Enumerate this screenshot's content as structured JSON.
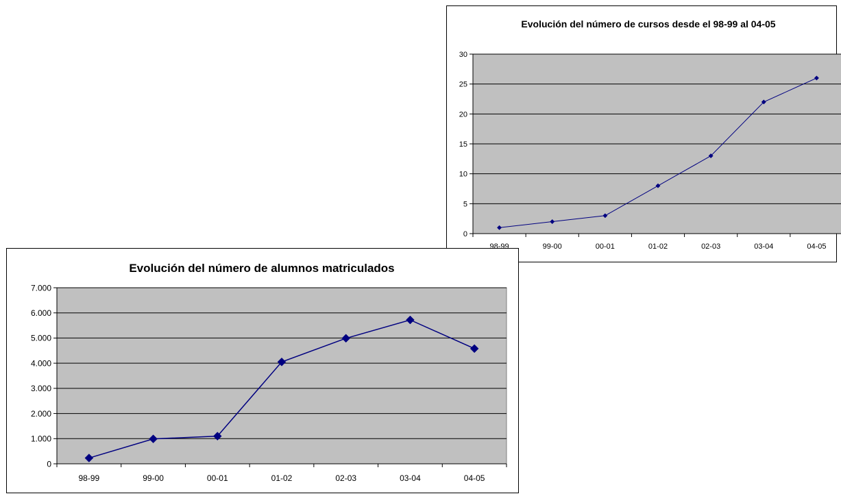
{
  "chart_data": [
    {
      "id": "cursos",
      "type": "line",
      "title": "Evolución del número de cursos desde el 98-99 al 04-05",
      "xlabel": "",
      "ylabel": "",
      "categories": [
        "98-99",
        "99-00",
        "00-01",
        "01-02",
        "02-03",
        "03-04",
        "04-05"
      ],
      "series": [
        {
          "values": [
            1,
            2,
            3,
            8,
            13,
            22,
            26
          ]
        }
      ],
      "ylim": [
        0,
        30
      ],
      "yticks": [
        0,
        5,
        10,
        15,
        20,
        25,
        30
      ],
      "ytick_labels": [
        "0",
        "5",
        "10",
        "15",
        "20",
        "25",
        "30"
      ],
      "grid": true,
      "legend": "none",
      "plot_background": "#c0c0c0",
      "line_color": "#000080",
      "marker": "diamond"
    },
    {
      "id": "alumnos",
      "type": "line",
      "title": "Evolución del número de alumnos matriculados",
      "xlabel": "",
      "ylabel": "",
      "categories": [
        "98-99",
        "99-00",
        "00-01",
        "01-02",
        "02-03",
        "03-04",
        "04-05"
      ],
      "category_labels": [
        "98-99",
        "99-00",
        "00-01",
        "01-02",
        "02-03",
        "03-04",
        "04-05"
      ],
      "series": [
        {
          "values": [
            230,
            990,
            1100,
            4050,
            4990,
            5720,
            4580
          ]
        }
      ],
      "ylim": [
        0,
        7000
      ],
      "yticks": [
        0,
        1000,
        2000,
        3000,
        4000,
        5000,
        6000,
        7000
      ],
      "ytick_labels": [
        "0",
        "1.000",
        "2.000",
        "3.000",
        "4.000",
        "5.000",
        "6.000",
        "7.000"
      ],
      "grid": true,
      "legend": "none",
      "plot_background": "#c0c0c0",
      "line_color": "#000080",
      "marker": "diamond"
    }
  ]
}
